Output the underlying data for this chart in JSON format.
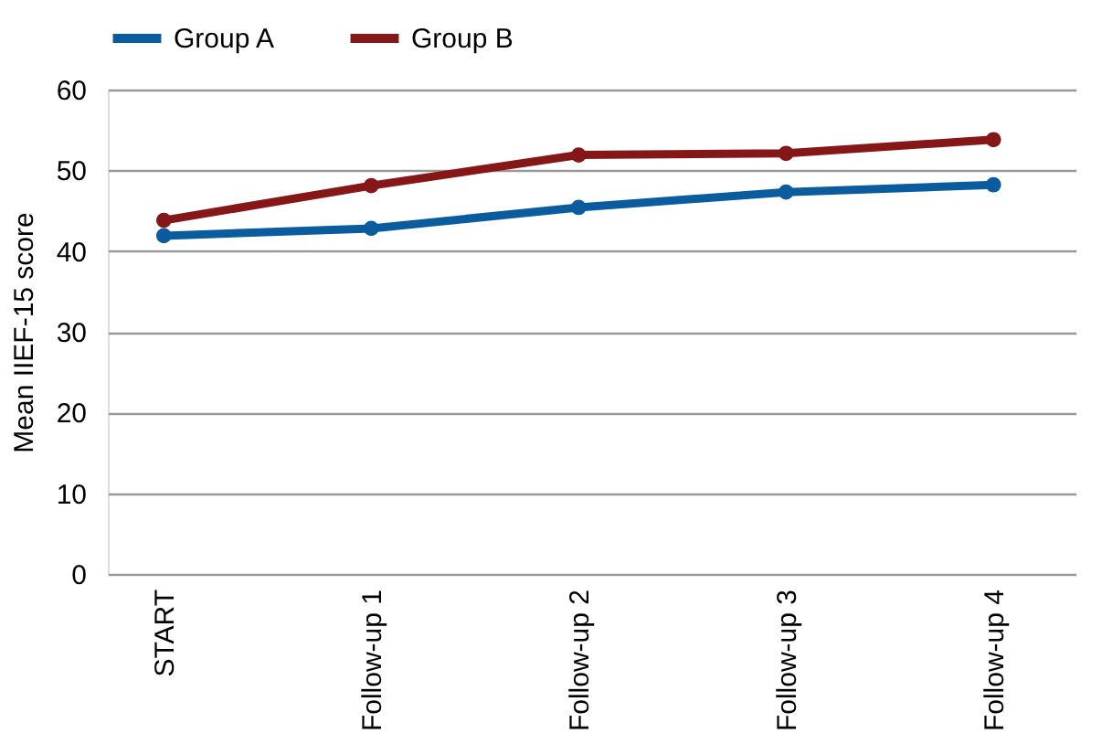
{
  "chart_data": {
    "type": "line",
    "ylabel": "Mean IIEF-15 score",
    "categories": [
      "START",
      "Follow-up 1",
      "Follow-up 2",
      "Follow-up 3",
      "Follow-up 4"
    ],
    "series": [
      {
        "name": "Group A",
        "color": "#0b5c9e",
        "values": [
          41.9,
          42.8,
          45.4,
          47.3,
          48.2
        ]
      },
      {
        "name": "Group B",
        "color": "#861719",
        "values": [
          43.8,
          48.1,
          51.9,
          52.1,
          53.8
        ]
      }
    ],
    "ylim": [
      0,
      60
    ],
    "yticks": [
      0,
      10,
      20,
      30,
      40,
      50,
      60
    ],
    "grid": "y",
    "legend": "top",
    "marker": "circle",
    "line_style": "solid"
  }
}
